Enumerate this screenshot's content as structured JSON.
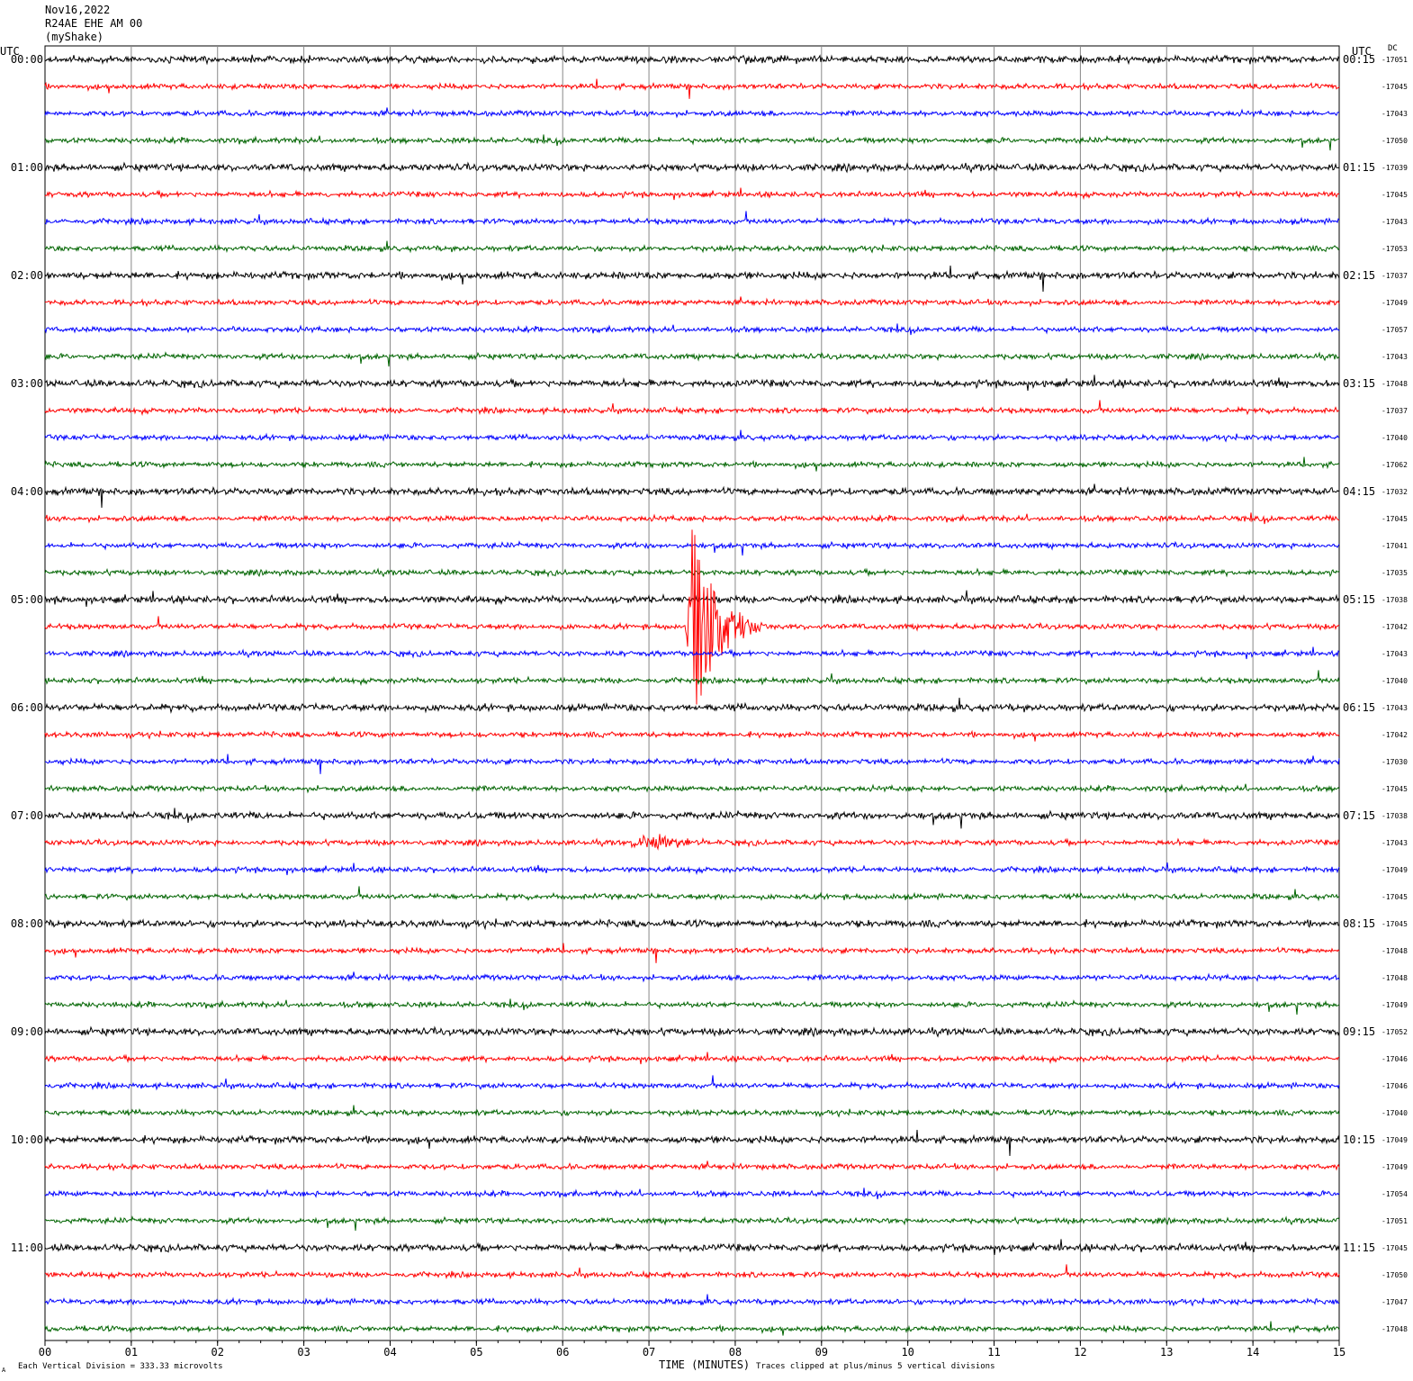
{
  "header": {
    "line1": "Nov16,2022",
    "line2": "R24AE EHE AM 00",
    "line3": "(myShake)"
  },
  "left_utc_label": "UTC",
  "right_utc_label": "UTC",
  "dc_label": "DC",
  "footer": {
    "division_note": "Each Vertical Division =  333.33 microvolts",
    "clip_note": "Traces clipped at plus/minus 5 vertical divisions",
    "corner_mark": "A"
  },
  "chart_data": {
    "type": "line",
    "title": "",
    "xlabel": "TIME (MINUTES)",
    "ylabel": "",
    "xlim": [
      0,
      15
    ],
    "x_ticks": [
      "00",
      "01",
      "02",
      "03",
      "04",
      "05",
      "06",
      "07",
      "08",
      "09",
      "10",
      "11",
      "12",
      "13",
      "14",
      "15"
    ],
    "series_colors": [
      "#000000",
      "#ff0000",
      "#0000ff",
      "#006400"
    ],
    "left_hour_labels": [
      "00:00",
      "01:00",
      "02:00",
      "03:00",
      "04:00",
      "05:00",
      "06:00",
      "07:00",
      "08:00",
      "09:00",
      "10:00",
      "11:00"
    ],
    "right_hour_labels": [
      "00:15",
      "01:15",
      "02:15",
      "03:15",
      "04:15",
      "05:15",
      "06:15",
      "07:15",
      "08:15",
      "09:15",
      "10:15",
      "11:15"
    ],
    "dc_offsets": [
      "-17051",
      "-17045",
      "-17043",
      "-17050",
      "-17039",
      "-17045",
      "-17043",
      "-17053",
      "-17037",
      "-17049",
      "-17057",
      "-17043",
      "-17048",
      "-17037",
      "-17040",
      "-17062",
      "-17032",
      "-17045",
      "-17041",
      "-17035",
      "-17038",
      "-17042",
      "-17043",
      "-17040",
      "-17043",
      "-17042",
      "-17030",
      "-17045",
      "-17038",
      "-17043",
      "-17049",
      "-17045",
      "-17045",
      "-17048",
      "-17048",
      "-17049",
      "-17052",
      "-17046",
      "-17046",
      "-17040",
      "-17049",
      "-17049",
      "-17054",
      "-17051",
      "-17045",
      "-17050",
      "-17047",
      "-17048"
    ],
    "events": [
      {
        "trace": 21,
        "minute": 7.5,
        "description_amplitude": "large"
      },
      {
        "trace": 29,
        "minute": 7.1,
        "description_amplitude": "medium"
      }
    ]
  }
}
